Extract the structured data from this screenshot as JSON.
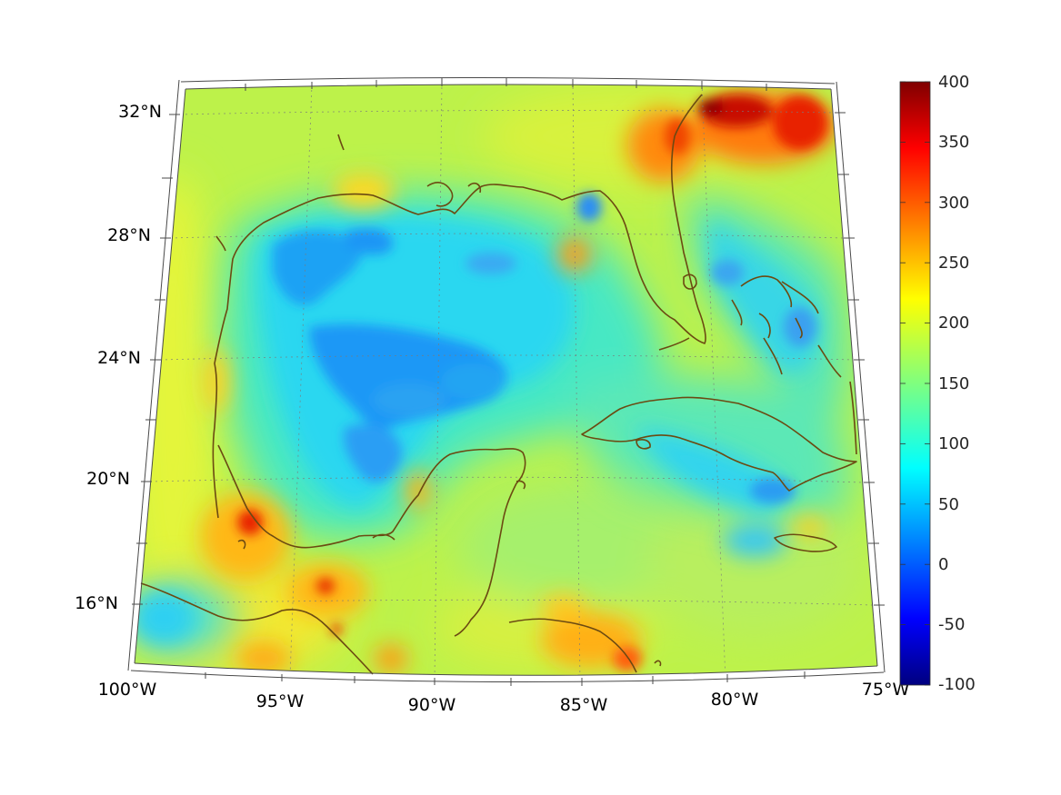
{
  "map": {
    "lon_labels": [
      "100°W",
      "95°W",
      "90°W",
      "85°W",
      "80°W",
      "75°W"
    ],
    "lat_labels": [
      "32°N",
      "28°N",
      "24°N",
      "20°N",
      "16°N"
    ],
    "colorbar": {
      "ticks": [
        "400",
        "350",
        "300",
        "250",
        "200",
        "150",
        "100",
        "50",
        "0",
        "-50",
        "-100"
      ],
      "min": -100,
      "max": 400,
      "colormap": "jet"
    },
    "colors": {
      "coastline": "#6b4a12",
      "low": "#00007f",
      "high": "#7f0000"
    }
  }
}
